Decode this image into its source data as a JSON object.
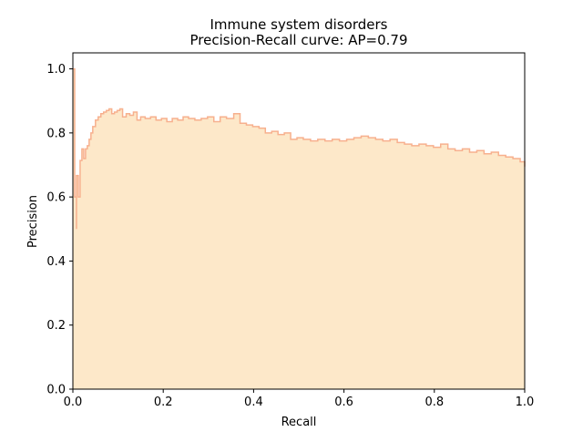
{
  "chart_data": {
    "type": "area",
    "title": "Immune system disorders",
    "subtitle": "Precision-Recall curve: AP=0.79",
    "xlabel": "Recall",
    "ylabel": "Precision",
    "xlim": [
      0.0,
      1.0
    ],
    "ylim": [
      0.0,
      1.05
    ],
    "xticks": [
      "0.0",
      "0.2",
      "0.4",
      "0.6",
      "0.8",
      "1.0"
    ],
    "yticks": [
      "0.0",
      "0.2",
      "0.4",
      "0.6",
      "0.8",
      "1.0"
    ],
    "grid": false,
    "legend": "none",
    "step": "post",
    "colors": {
      "fill": "#fde8c9",
      "line": "#f7b08e"
    },
    "series": [
      {
        "recall": [
          0.0,
          0.004,
          0.004,
          0.008,
          0.008,
          0.012,
          0.016,
          0.02,
          0.024,
          0.028,
          0.032,
          0.036,
          0.04,
          0.044,
          0.05,
          0.056,
          0.062,
          0.068,
          0.074,
          0.08,
          0.086,
          0.092,
          0.098,
          0.104,
          0.11,
          0.118,
          0.126,
          0.134,
          0.142,
          0.15,
          0.16,
          0.172,
          0.184,
          0.196,
          0.208,
          0.22,
          0.232,
          0.244,
          0.256,
          0.27,
          0.284,
          0.298,
          0.312,
          0.326,
          0.34,
          0.356,
          0.37,
          0.384,
          0.398,
          0.412,
          0.426,
          0.44,
          0.454,
          0.468,
          0.482,
          0.496,
          0.51,
          0.526,
          0.542,
          0.558,
          0.574,
          0.59,
          0.606,
          0.622,
          0.638,
          0.654,
          0.67,
          0.686,
          0.702,
          0.718,
          0.734,
          0.75,
          0.766,
          0.782,
          0.798,
          0.814,
          0.83,
          0.846,
          0.862,
          0.878,
          0.894,
          0.91,
          0.926,
          0.942,
          0.958,
          0.974,
          0.99,
          1.0
        ],
        "precision": [
          1.0,
          1.0,
          0.6,
          0.5,
          0.667,
          0.6,
          0.714,
          0.75,
          0.72,
          0.75,
          0.76,
          0.78,
          0.8,
          0.82,
          0.84,
          0.85,
          0.86,
          0.865,
          0.87,
          0.875,
          0.86,
          0.865,
          0.87,
          0.875,
          0.85,
          0.86,
          0.855,
          0.865,
          0.84,
          0.85,
          0.845,
          0.85,
          0.84,
          0.845,
          0.835,
          0.845,
          0.84,
          0.85,
          0.845,
          0.84,
          0.845,
          0.85,
          0.835,
          0.85,
          0.845,
          0.86,
          0.83,
          0.825,
          0.82,
          0.815,
          0.8,
          0.805,
          0.795,
          0.8,
          0.78,
          0.785,
          0.78,
          0.775,
          0.78,
          0.775,
          0.78,
          0.775,
          0.78,
          0.785,
          0.79,
          0.785,
          0.78,
          0.775,
          0.78,
          0.77,
          0.765,
          0.76,
          0.765,
          0.76,
          0.755,
          0.765,
          0.75,
          0.745,
          0.75,
          0.74,
          0.745,
          0.735,
          0.74,
          0.73,
          0.725,
          0.72,
          0.71,
          0.695
        ]
      }
    ]
  }
}
